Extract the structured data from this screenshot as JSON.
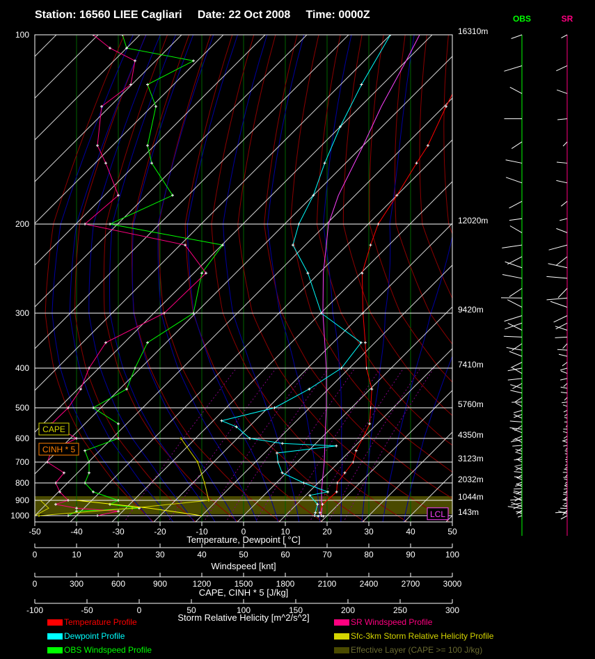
{
  "header": {
    "station": "Station: 16560 LIEE Cagliari",
    "date": "Date: 22 Oct 2008",
    "time": "Time: 0000Z"
  },
  "chart_data": {
    "type": "line",
    "chart_kind": "Skew-T log-P sounding",
    "pressure_levels": [
      100,
      200,
      300,
      400,
      500,
      600,
      700,
      800,
      900,
      1000
    ],
    "height_labels": [
      {
        "p": 100,
        "label": "16310m"
      },
      {
        "p": 200,
        "label": "12020m"
      },
      {
        "p": 300,
        "label": "9420m"
      },
      {
        "p": 400,
        "label": "7410m"
      },
      {
        "p": 500,
        "label": "5760m"
      },
      {
        "p": 600,
        "label": "4350m"
      },
      {
        "p": 700,
        "label": "3123m"
      },
      {
        "p": 800,
        "label": "2032m"
      },
      {
        "p": 900,
        "label": "1044m"
      },
      {
        "p": 1000,
        "label": "143m"
      }
    ],
    "temperature_axis": {
      "label": "Temperature, Dewpoint [ °C]",
      "ticks": [
        -50,
        -40,
        -30,
        -20,
        -10,
        0,
        10,
        20,
        30,
        40,
        50
      ],
      "range": [
        -50,
        50
      ]
    },
    "windspeed_axis": {
      "label": "Windspeed [knt]",
      "ticks": [
        0,
        10,
        20,
        30,
        40,
        50,
        60,
        70,
        80,
        90,
        100
      ],
      "range": [
        0,
        100
      ]
    },
    "cape_axis": {
      "label": "CAPE, CINH * 5 [J/kg]",
      "ticks": [
        0,
        300,
        600,
        900,
        1200,
        1500,
        1800,
        2100,
        2400,
        2700,
        3000
      ],
      "range": [
        0,
        3000
      ]
    },
    "helicity_axis": {
      "label": "Storm Relative Helicity [m^2/s^2]",
      "ticks": [
        -100,
        -50,
        0,
        50,
        100,
        150,
        200,
        250,
        300
      ],
      "range": [
        -100,
        300
      ]
    },
    "temperature_profile": [
      [
        1004,
        19.2
      ],
      [
        1000,
        18.6
      ],
      [
        980,
        17.6
      ],
      [
        925,
        16.2
      ],
      [
        850,
        16.6
      ],
      [
        800,
        14.6
      ],
      [
        750,
        14.0
      ],
      [
        700,
        13.4
      ],
      [
        650,
        11.4
      ],
      [
        600,
        10.0
      ],
      [
        550,
        8.2
      ],
      [
        500,
        4.6
      ],
      [
        450,
        0.4
      ],
      [
        400,
        -5.9
      ],
      [
        350,
        -12.3
      ],
      [
        300,
        -19.9
      ],
      [
        250,
        -29.7
      ],
      [
        220,
        -34.4
      ],
      [
        200,
        -37.6
      ],
      [
        180,
        -40.0
      ],
      [
        160,
        -43.0
      ],
      [
        150,
        -44.5
      ],
      [
        130,
        -49.5
      ],
      [
        110,
        -54.9
      ],
      [
        100,
        -57.4
      ]
    ],
    "dewpoint_profile": [
      [
        1004,
        18.0
      ],
      [
        1000,
        17.0
      ],
      [
        980,
        16.5
      ],
      [
        925,
        15.0
      ],
      [
        870,
        11.0
      ],
      [
        850,
        14.5
      ],
      [
        800,
        6.6
      ],
      [
        750,
        -1.0
      ],
      [
        700,
        -4.6
      ],
      [
        660,
        -7.0
      ],
      [
        630,
        5.5
      ],
      [
        620,
        -8.0
      ],
      [
        600,
        -17.0
      ],
      [
        560,
        -23.0
      ],
      [
        540,
        -28.0
      ],
      [
        500,
        -18.4
      ],
      [
        450,
        -14.6
      ],
      [
        400,
        -11.9
      ],
      [
        350,
        -13.3
      ],
      [
        300,
        -29.9
      ],
      [
        250,
        -42.7
      ],
      [
        220,
        -53.0
      ],
      [
        200,
        -56.6
      ],
      [
        180,
        -60.0
      ],
      [
        160,
        -65.0
      ],
      [
        140,
        -70.0
      ],
      [
        120,
        -75.0
      ],
      [
        100,
        -80.0
      ]
    ],
    "parcel_profile": [
      [
        1000,
        18.6
      ],
      [
        950,
        17.0
      ],
      [
        900,
        15.0
      ],
      [
        850,
        13.0
      ],
      [
        800,
        11.0
      ],
      [
        700,
        6.5
      ],
      [
        600,
        1.0
      ],
      [
        500,
        -6.0
      ],
      [
        400,
        -15.5
      ],
      [
        300,
        -29.5
      ],
      [
        250,
        -39.0
      ],
      [
        220,
        -45.0
      ],
      [
        200,
        -49.5
      ],
      [
        180,
        -54.0
      ],
      [
        150,
        -60.0
      ],
      [
        130,
        -65.0
      ],
      [
        110,
        -70.0
      ],
      [
        100,
        -73.0
      ]
    ],
    "obs_windspeed_profile": [
      [
        1000,
        8
      ],
      [
        970,
        10
      ],
      [
        950,
        25
      ],
      [
        925,
        18
      ],
      [
        900,
        20
      ],
      [
        850,
        14
      ],
      [
        800,
        12
      ],
      [
        750,
        13
      ],
      [
        700,
        13
      ],
      [
        650,
        12
      ],
      [
        600,
        20
      ],
      [
        550,
        20
      ],
      [
        500,
        14
      ],
      [
        450,
        22
      ],
      [
        400,
        24
      ],
      [
        350,
        27
      ],
      [
        300,
        38
      ],
      [
        250,
        40
      ],
      [
        220,
        45
      ],
      [
        200,
        18
      ],
      [
        180,
        33
      ],
      [
        160,
        28
      ],
      [
        150,
        27
      ],
      [
        130,
        29
      ],
      [
        120,
        27
      ],
      [
        110,
        38
      ],
      [
        105,
        22
      ],
      [
        100,
        21
      ]
    ],
    "sr_windspeed_profile": [
      [
        1000,
        15
      ],
      [
        970,
        20
      ],
      [
        950,
        10
      ],
      [
        925,
        5
      ],
      [
        900,
        8
      ],
      [
        850,
        6
      ],
      [
        800,
        5
      ],
      [
        750,
        7
      ],
      [
        700,
        3
      ],
      [
        650,
        4
      ],
      [
        600,
        10
      ],
      [
        550,
        4
      ],
      [
        500,
        8
      ],
      [
        450,
        11
      ],
      [
        400,
        13
      ],
      [
        350,
        17
      ],
      [
        300,
        31
      ],
      [
        250,
        41
      ],
      [
        220,
        36
      ],
      [
        200,
        12
      ],
      [
        180,
        20
      ],
      [
        160,
        17
      ],
      [
        150,
        15
      ],
      [
        130,
        16
      ],
      [
        120,
        23
      ],
      [
        110,
        24
      ],
      [
        105,
        18
      ],
      [
        100,
        14
      ]
    ],
    "cape_profile": [
      [
        1000,
        30
      ],
      [
        950,
        700
      ],
      [
        900,
        1250
      ],
      [
        800,
        1220
      ],
      [
        700,
        1170
      ],
      [
        600,
        1050
      ]
    ],
    "cinh_profile": [
      [
        1000,
        0
      ],
      [
        950,
        100
      ],
      [
        900,
        40
      ]
    ],
    "helicity_profile": [
      [
        1000,
        60
      ],
      [
        950,
        10
      ],
      [
        900,
        -60
      ]
    ],
    "effective_layer": {
      "top": 875,
      "bottom": 990
    },
    "markers": {
      "cape": "CAPE",
      "cinh": "CINH * 5",
      "lcl": "LCL",
      "lcl_p": 980
    },
    "legend": [
      {
        "name": "Temperature Profile",
        "color": "#ff0000"
      },
      {
        "name": "Dewpoint Profile",
        "color": "#00ffff"
      },
      {
        "name": "OBS Windspeed Profile",
        "color": "#00ff00"
      },
      {
        "name": "SR Windspeed Profile",
        "color": "#ff0080"
      },
      {
        "name": "Sfc-3km Storm Relative Helicity Profile",
        "color": "#d4d400"
      },
      {
        "name": "Effective Layer (CAPE >= 100 J/kg)",
        "color": "#4a4a00"
      }
    ],
    "hodograph_columns": [
      {
        "name": "OBS",
        "color": "#00ff00"
      },
      {
        "name": "SR",
        "color": "#ff0080"
      }
    ]
  }
}
